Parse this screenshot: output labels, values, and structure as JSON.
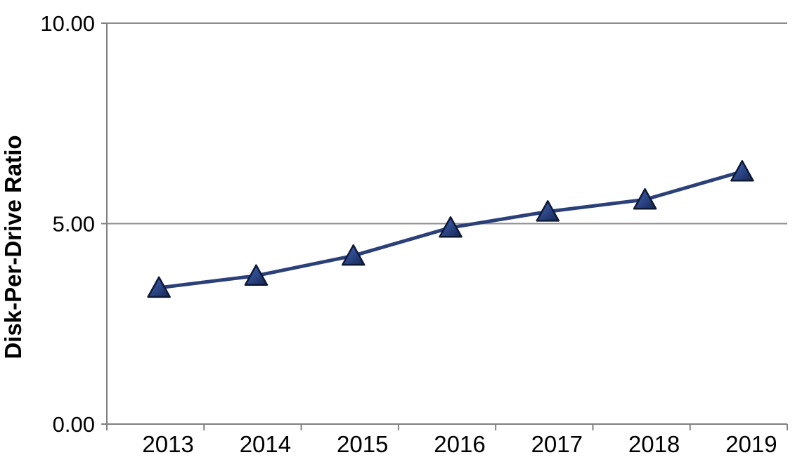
{
  "chart_data": {
    "type": "line",
    "title": "",
    "categories": [
      "2013",
      "2014",
      "2015",
      "2016",
      "2017",
      "2018",
      "2019"
    ],
    "series": [
      {
        "name": "Disk-Per-Drive Ratio",
        "values": [
          3.4,
          3.7,
          4.2,
          4.9,
          5.3,
          5.6,
          6.3
        ]
      }
    ],
    "xlabel": "",
    "ylabel": "Disk-Per-Drive Ratio",
    "ylim": [
      0,
      10
    ],
    "yticks": [
      {
        "value": 0,
        "label": "0.00"
      },
      {
        "value": 5,
        "label": "5.00"
      },
      {
        "value": 10,
        "label": "10.00"
      }
    ],
    "grid": "horizontal",
    "legend_position": "none",
    "marker_shape": "triangle-up",
    "colors": {
      "line": "#2B4078",
      "marker_fill": "#2E4A8F",
      "marker_highlight": "#4A67AC",
      "marker_shadow": "#16244E",
      "marker_edge": "#0D1834",
      "gridline": "#8C8C8C",
      "axis": "#808080",
      "text": "#000000",
      "background": "#FFFFFF"
    }
  }
}
